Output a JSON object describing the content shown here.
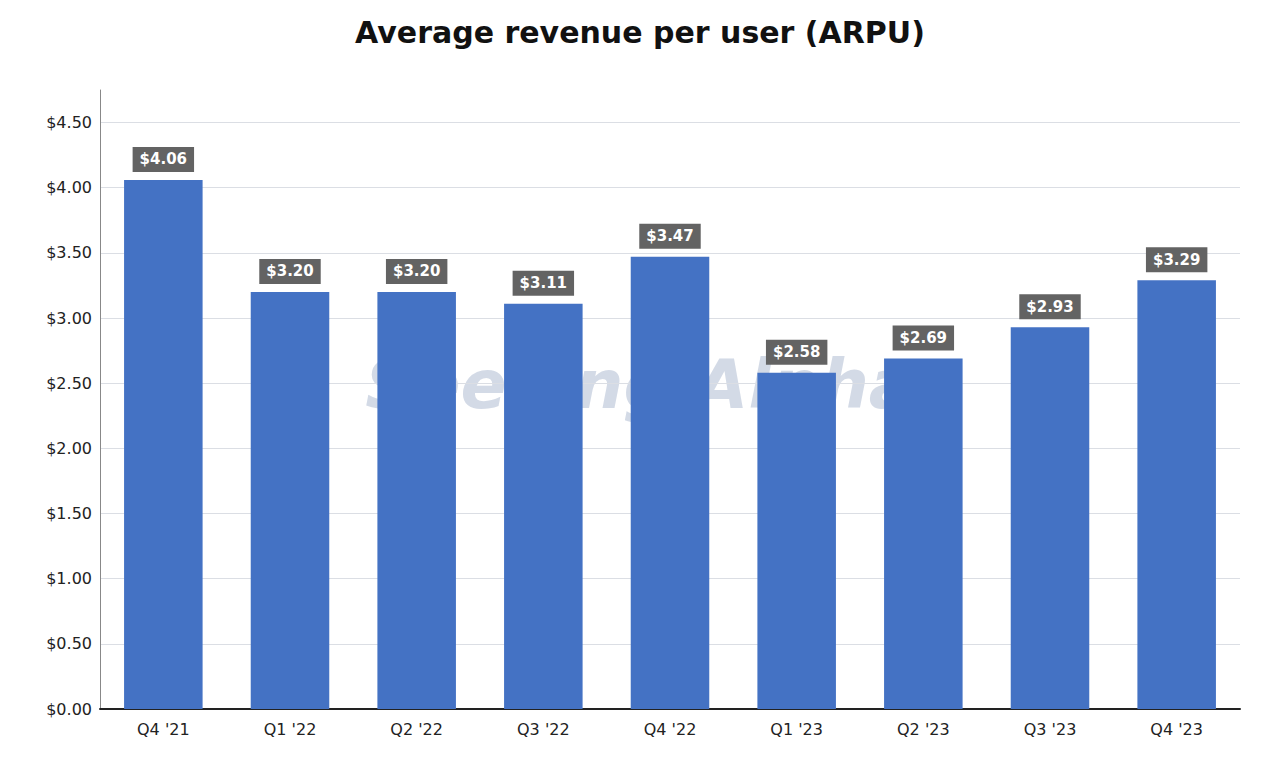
{
  "chart_data": {
    "type": "bar",
    "title": "Average revenue per user (ARPU)",
    "categories": [
      "Q4 '21",
      "Q1 '22",
      "Q2 '22",
      "Q3 '22",
      "Q4 '22",
      "Q1 '23",
      "Q2 '23",
      "Q3 '23",
      "Q4 '23"
    ],
    "values": [
      4.06,
      3.2,
      3.2,
      3.11,
      3.47,
      2.58,
      2.69,
      2.93,
      3.29
    ],
    "value_labels": [
      "$4.06",
      "$3.20",
      "$3.20",
      "$3.11",
      "$3.47",
      "$2.58",
      "$2.69",
      "$2.93",
      "$3.29"
    ],
    "data_labels": true,
    "color": "#4472C4",
    "ylim": [
      0,
      4.75
    ],
    "yticks": [
      {
        "value": 0.0,
        "label": "$0.00"
      },
      {
        "value": 0.5,
        "label": "$0.50"
      },
      {
        "value": 1.0,
        "label": "$1.00"
      },
      {
        "value": 1.5,
        "label": "$1.50"
      },
      {
        "value": 2.0,
        "label": "$2.00"
      },
      {
        "value": 2.5,
        "label": "$2.50"
      },
      {
        "value": 3.0,
        "label": "$3.00"
      },
      {
        "value": 3.5,
        "label": "$3.50"
      },
      {
        "value": 4.0,
        "label": "$4.00"
      },
      {
        "value": 4.5,
        "label": "$4.50"
      }
    ],
    "grid": true,
    "annotations": [
      "Seeking Alpha"
    ]
  }
}
